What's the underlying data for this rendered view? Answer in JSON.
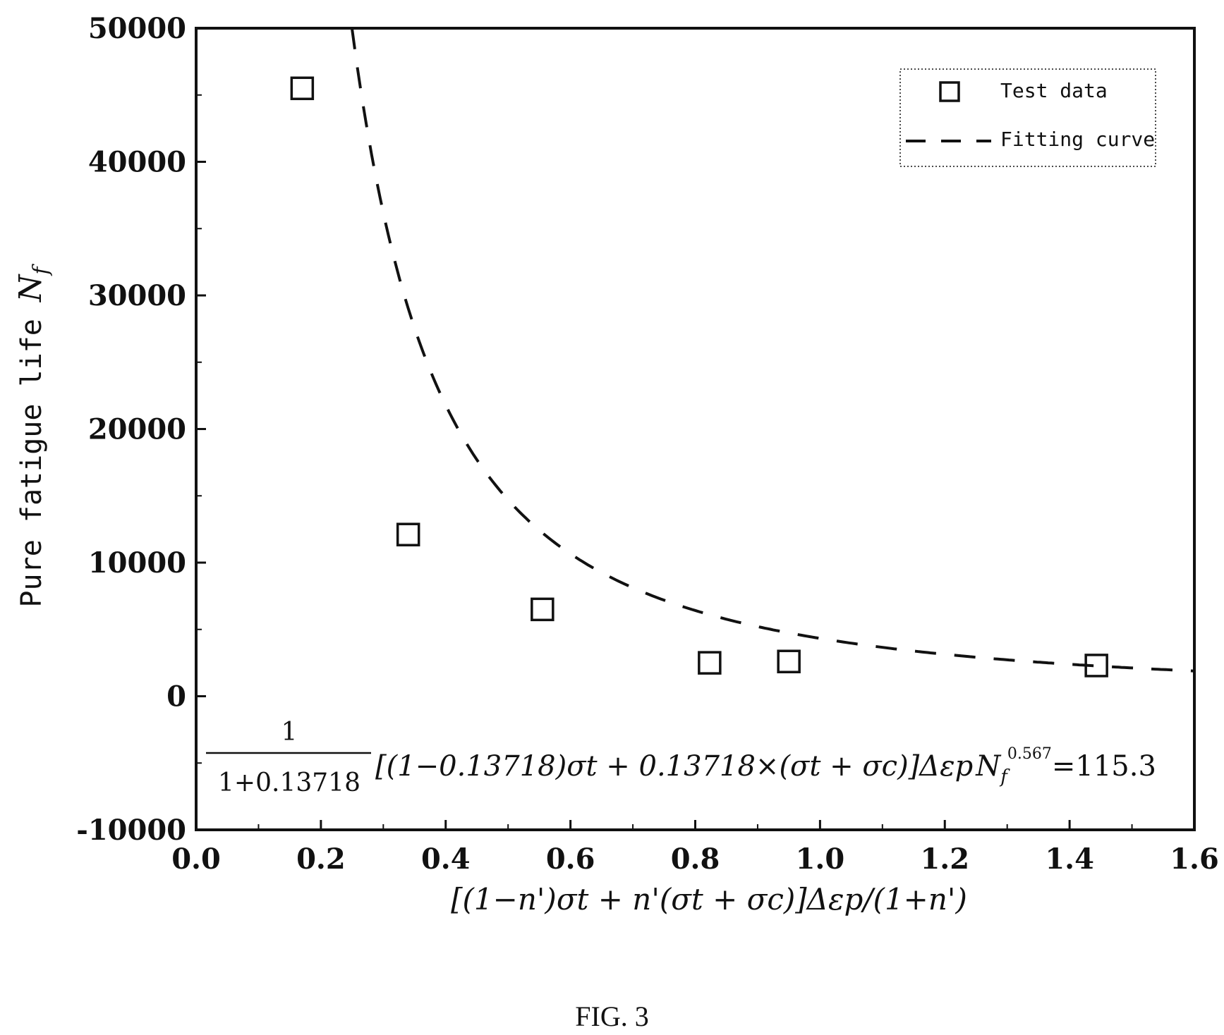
{
  "chart_data": {
    "type": "scatter",
    "xlim": [
      0.0,
      1.6
    ],
    "ylim": [
      -10000,
      50000
    ],
    "x_ticks": [
      "0.0",
      "0.2",
      "0.4",
      "0.6",
      "0.8",
      "1.0",
      "1.2",
      "1.4",
      "1.6"
    ],
    "y_ticks": [
      "-10000",
      "0",
      "10000",
      "20000",
      "30000",
      "40000",
      "50000"
    ],
    "ylabel": "Pure fatigue life",
    "ylabel_symbol": "N",
    "ylabel_subscript": "f",
    "xlabel": "[(1−n')σt + n'(σt + σc)]Δεp/(1+n')",
    "grid": false,
    "legend_position": "top-right",
    "series": [
      {
        "name": "Test data",
        "marker": "open-square",
        "x": [
          0.17,
          0.34,
          0.555,
          0.823,
          0.95,
          1.443
        ],
        "y": [
          45500,
          12100,
          6500,
          2500,
          2600,
          2300
        ]
      },
      {
        "name": "Fitting curve",
        "style": "dashed-line",
        "equation_coefficient": 115.3,
        "equation_exponent": 0.567
      }
    ],
    "annotation": {
      "numerator": "1",
      "denominator": "1+0.13718",
      "body": "[(1−0.13718)σt + 0.13718×(σt + σc)]Δεp",
      "nf_symbol": "N",
      "nf_subscript": "f",
      "exponent": "0.567",
      "rhs": "=115.3"
    }
  },
  "figure_caption": "FIG. 3"
}
